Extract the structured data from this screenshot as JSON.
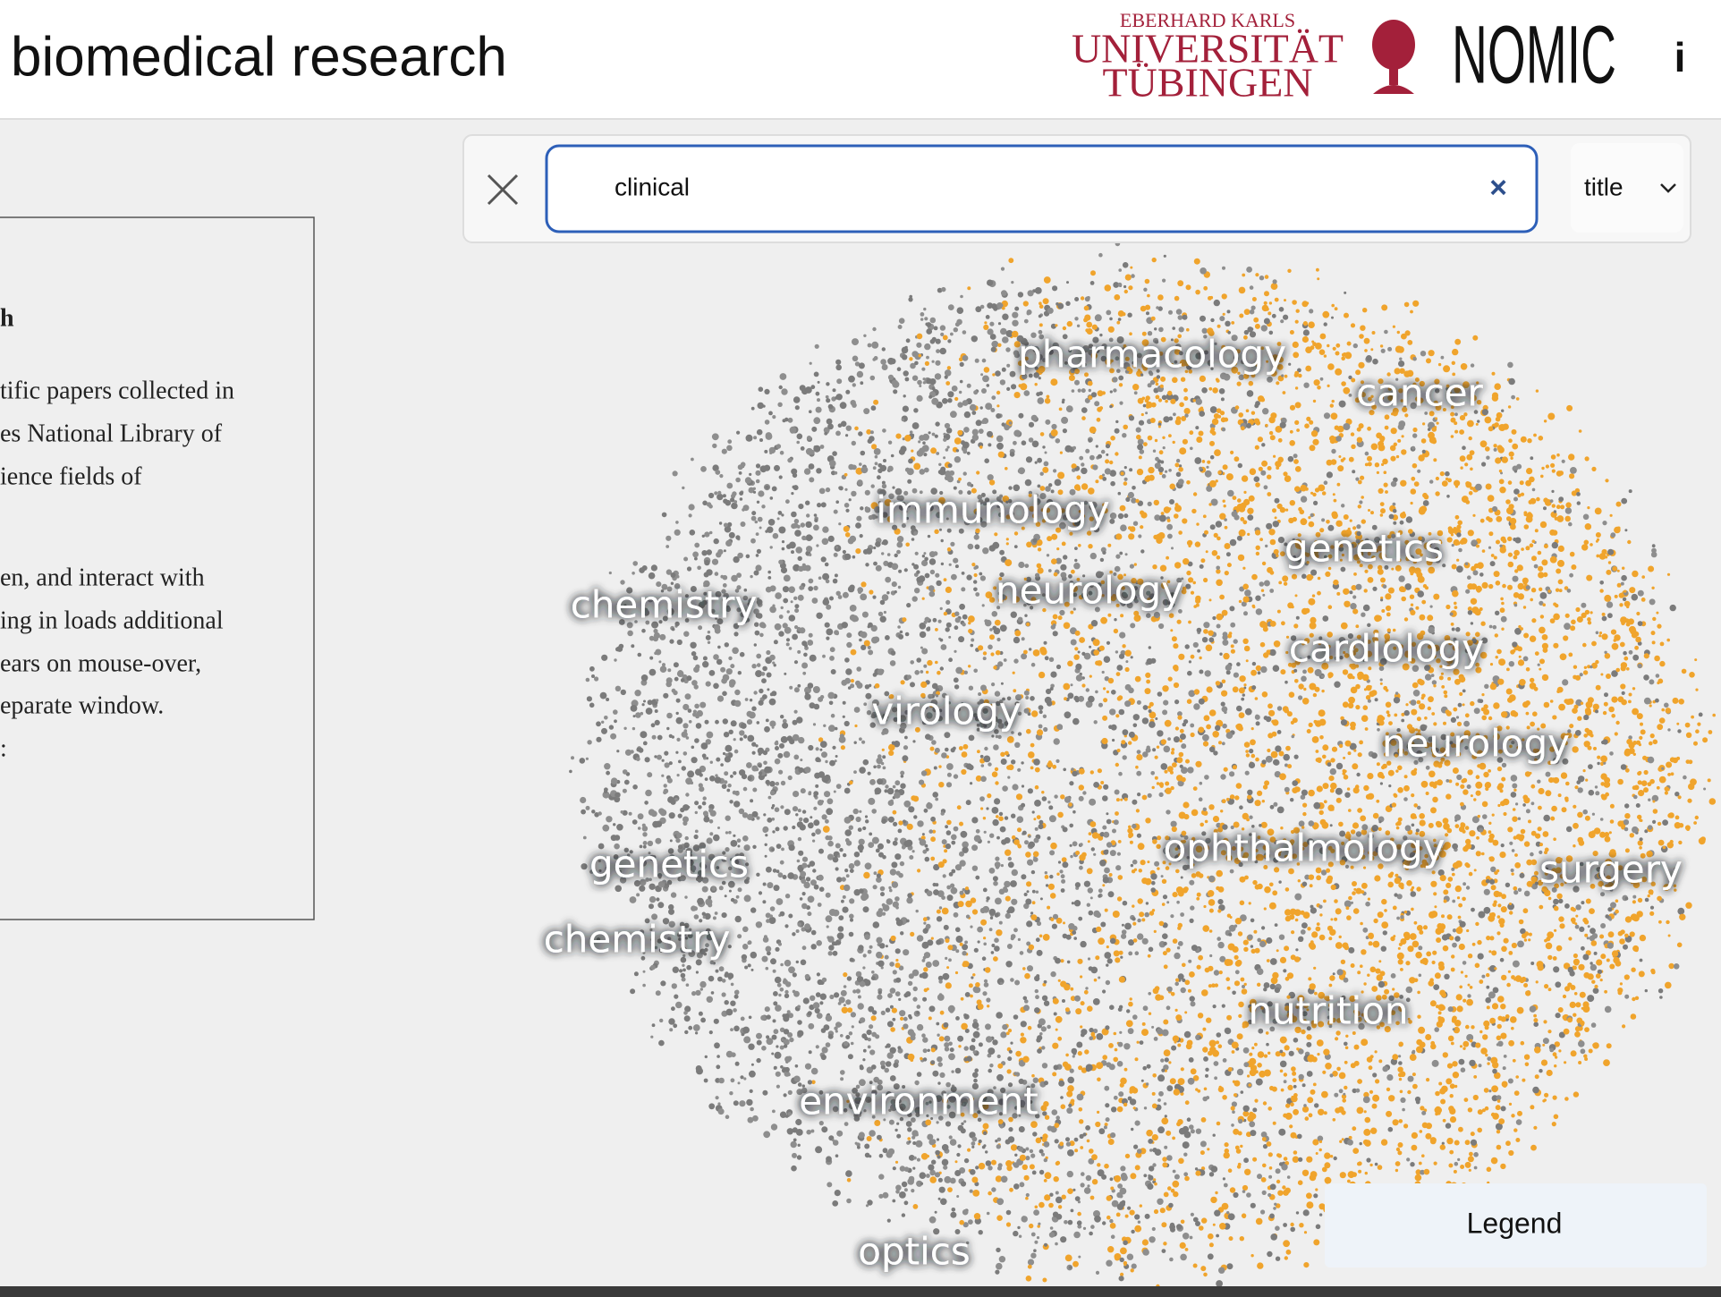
{
  "header": {
    "title": "biomedical research",
    "logo": {
      "line1": "EBERHARD KARLS",
      "line2": "UNIVERSITÄT",
      "line3": "TÜBINGEN"
    },
    "brand": "NOMIC",
    "info": "i"
  },
  "search": {
    "query": "clinical",
    "clear": "×",
    "field": "title"
  },
  "panel": {
    "heading": "h",
    "lines": [
      "tific papers collected in",
      "es National Library of",
      "ience fields of",
      "",
      "en, and interact with",
      "ing in loads additional",
      "ears on mouse-over,",
      "eparate window.",
      ":"
    ]
  },
  "map": {
    "labels": [
      "pharmacology",
      "cancer",
      "immunology",
      "genetics",
      "neurology",
      "chemistry",
      "cardiology",
      "virology",
      "neurology",
      "ophthalmology",
      "surgery",
      "genetics",
      "chemistry",
      "nutrition",
      "environment",
      "optics"
    ]
  },
  "legend": "Legend"
}
